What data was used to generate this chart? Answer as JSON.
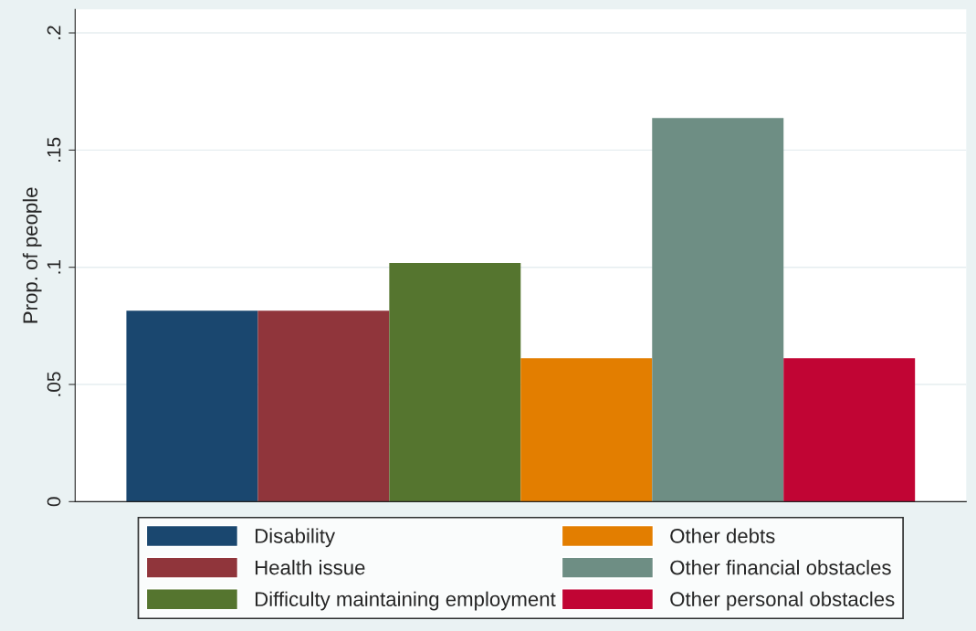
{
  "chart_data": {
    "type": "bar",
    "ylabel": "Prop. of people",
    "categories": [
      null
    ],
    "series": [
      {
        "name": "Disability",
        "color": "#1a476f",
        "values": [
          0.0815
        ]
      },
      {
        "name": "Health issue",
        "color": "#90353b",
        "values": [
          0.0815
        ]
      },
      {
        "name": "Difficulty maintaining employment",
        "color": "#55752f",
        "values": [
          0.1018
        ]
      },
      {
        "name": "Other debts",
        "color": "#e37e00",
        "values": [
          0.0612
        ]
      },
      {
        "name": "Other financial obstacles",
        "color": "#6e8e84",
        "values": [
          0.1637
        ]
      },
      {
        "name": "Other personal obstacles",
        "color": "#c10534",
        "values": [
          0.0612
        ]
      }
    ],
    "ylim": [
      0,
      0.21
    ],
    "yticks": [
      {
        "value": 0,
        "label": "0"
      },
      {
        "value": 0.05,
        "label": ".05"
      },
      {
        "value": 0.1,
        "label": ".1"
      },
      {
        "value": 0.15,
        "label": ".15"
      },
      {
        "value": 0.2,
        "label": ".2"
      }
    ],
    "grid": "y",
    "legend": "bottom"
  }
}
